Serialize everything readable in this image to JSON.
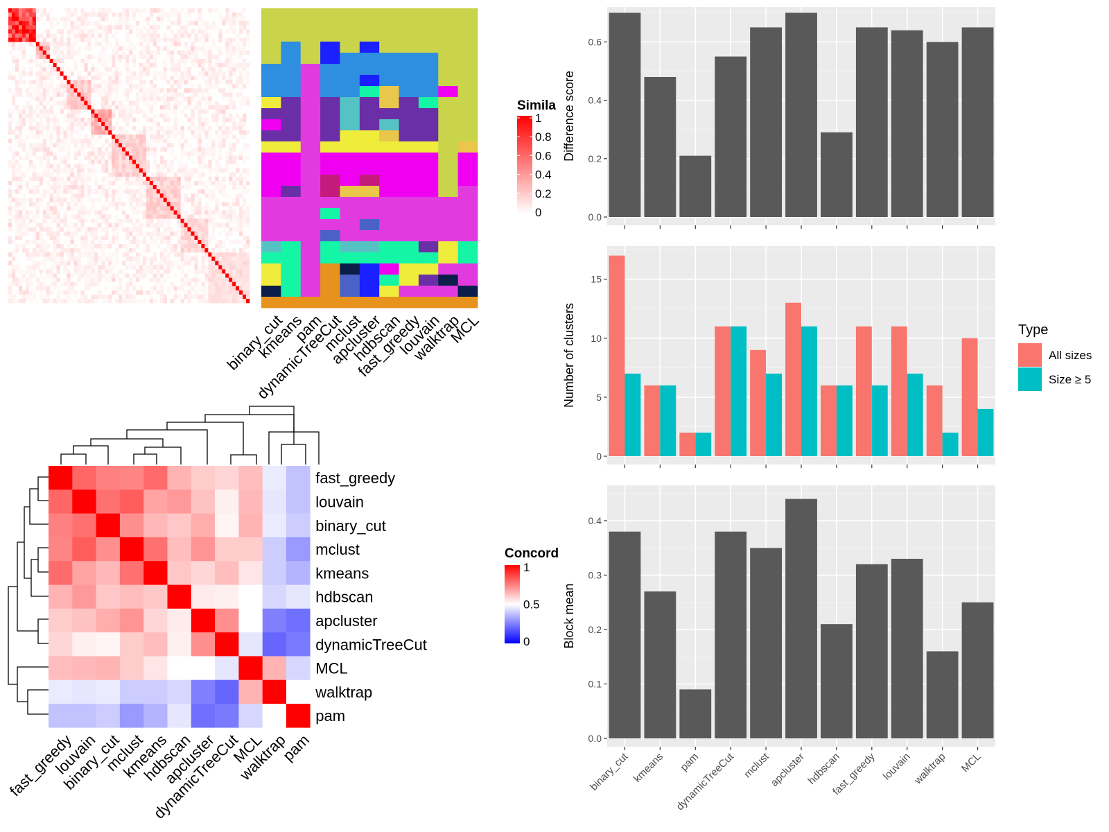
{
  "colors": {
    "panel_bg": "#ebebeb",
    "bar_dark": "#595959",
    "all_sizes": "#f8766d",
    "size_ge5": "#00bfc4",
    "heat_high": "#ff0000",
    "heat_mid": "#ffffff",
    "heat_low": "#0000ff"
  },
  "chart_data": [
    {
      "type": "heatmap",
      "name": "similarity-matrix",
      "legend": {
        "title": "Simila",
        "ticks": [
          "1",
          "0.8",
          "0.6",
          "0.4",
          "0.2",
          "0"
        ],
        "range": [
          0,
          1
        ]
      }
    },
    {
      "type": "table",
      "name": "cluster-membership-grid",
      "columns": [
        "binary_cut",
        "kmeans",
        "pam",
        "dynamicTreeCut",
        "mclust",
        "apcluster",
        "hdbscan",
        "fast_greedy",
        "louvain",
        "walktrap",
        "MCL"
      ],
      "palette": [
        "#c9d44a",
        "#2e8ee0",
        "#e13be0",
        "#6a2fa6",
        "#f0ec3c",
        "#14f5a6",
        "#55c3c3",
        "#ef00f0",
        "#c41a7b",
        "#1a20ff",
        "#e8c74a",
        "#e8921e",
        "#4a62c8",
        "#0b1e4a",
        "#4ac8c8"
      ],
      "cells": [
        [
          0,
          0,
          0,
          0,
          0,
          0,
          0,
          0,
          0,
          0,
          0
        ],
        [
          0,
          0,
          0,
          0,
          0,
          0,
          0,
          0,
          0,
          0,
          0
        ],
        [
          0,
          0,
          0,
          0,
          0,
          0,
          0,
          0,
          0,
          0,
          0
        ],
        [
          0,
          1,
          0,
          9,
          0,
          9,
          0,
          0,
          0,
          0,
          0
        ],
        [
          0,
          1,
          0,
          9,
          1,
          1,
          1,
          1,
          1,
          0,
          0
        ],
        [
          1,
          1,
          2,
          1,
          1,
          1,
          1,
          1,
          1,
          0,
          0
        ],
        [
          1,
          1,
          2,
          1,
          1,
          9,
          1,
          1,
          1,
          0,
          0
        ],
        [
          1,
          1,
          2,
          1,
          1,
          5,
          10,
          1,
          1,
          7,
          0
        ],
        [
          4,
          3,
          2,
          3,
          6,
          3,
          10,
          3,
          5,
          0,
          0
        ],
        [
          3,
          3,
          2,
          3,
          6,
          3,
          3,
          3,
          3,
          0,
          0
        ],
        [
          7,
          3,
          2,
          3,
          6,
          3,
          6,
          3,
          3,
          0,
          0
        ],
        [
          3,
          3,
          2,
          3,
          4,
          4,
          10,
          3,
          3,
          0,
          0
        ],
        [
          4,
          4,
          2,
          4,
          4,
          4,
          4,
          4,
          4,
          0,
          10
        ],
        [
          7,
          7,
          2,
          7,
          7,
          7,
          7,
          7,
          7,
          0,
          7
        ],
        [
          7,
          7,
          2,
          7,
          7,
          7,
          7,
          7,
          7,
          0,
          7
        ],
        [
          7,
          7,
          2,
          8,
          7,
          8,
          7,
          7,
          7,
          0,
          7
        ],
        [
          7,
          3,
          2,
          8,
          10,
          10,
          7,
          7,
          7,
          0,
          2
        ],
        [
          2,
          2,
          2,
          2,
          2,
          2,
          2,
          2,
          2,
          2,
          2
        ],
        [
          2,
          2,
          2,
          5,
          2,
          2,
          2,
          2,
          2,
          2,
          2
        ],
        [
          2,
          2,
          2,
          2,
          2,
          12,
          2,
          2,
          2,
          2,
          2
        ],
        [
          2,
          2,
          2,
          12,
          2,
          2,
          2,
          2,
          2,
          2,
          2
        ],
        [
          6,
          5,
          2,
          5,
          6,
          6,
          5,
          5,
          3,
          4,
          5
        ],
        [
          5,
          5,
          2,
          5,
          5,
          5,
          5,
          5,
          5,
          4,
          5
        ],
        [
          4,
          5,
          2,
          11,
          13,
          9,
          7,
          4,
          4,
          2,
          2
        ],
        [
          4,
          5,
          2,
          11,
          12,
          9,
          5,
          4,
          3,
          13,
          2
        ],
        [
          13,
          5,
          2,
          11,
          12,
          9,
          4,
          2,
          2,
          2,
          13
        ],
        [
          11,
          11,
          11,
          11,
          11,
          11,
          11,
          11,
          11,
          11,
          11
        ]
      ],
      "column_labels": [
        "binary_cut",
        "kmeans",
        "pam",
        "dynamicTreeCut",
        "mclust",
        "apcluster",
        "hdbscan",
        "fast_greedy",
        "louvain",
        "walktrap",
        "MCL"
      ]
    },
    {
      "type": "heatmap",
      "name": "concordance-heatmap",
      "labels": [
        "fast_greedy",
        "louvain",
        "binary_cut",
        "mclust",
        "kmeans",
        "hdbscan",
        "apcluster",
        "dynamicTreeCut",
        "MCL",
        "walktrap",
        "pam"
      ],
      "values": [
        [
          1.0,
          0.8,
          0.75,
          0.74,
          0.79,
          0.65,
          0.6,
          0.58,
          0.63,
          0.46,
          0.38
        ],
        [
          0.8,
          1.0,
          0.78,
          0.82,
          0.68,
          0.7,
          0.62,
          0.53,
          0.64,
          0.45,
          0.38
        ],
        [
          0.75,
          0.78,
          1.0,
          0.72,
          0.64,
          0.61,
          0.66,
          0.52,
          0.65,
          0.46,
          0.4
        ],
        [
          0.74,
          0.82,
          0.72,
          1.0,
          0.78,
          0.63,
          0.71,
          0.6,
          0.6,
          0.4,
          0.3
        ],
        [
          0.79,
          0.68,
          0.64,
          0.78,
          1.0,
          0.61,
          0.58,
          0.63,
          0.55,
          0.4,
          0.35
        ],
        [
          0.65,
          0.7,
          0.61,
          0.63,
          0.61,
          1.0,
          0.54,
          0.53,
          0.5,
          0.42,
          0.45
        ],
        [
          0.6,
          0.62,
          0.66,
          0.71,
          0.58,
          0.54,
          1.0,
          0.72,
          0.5,
          0.25,
          0.22
        ],
        [
          0.58,
          0.53,
          0.52,
          0.6,
          0.63,
          0.53,
          0.72,
          1.0,
          0.45,
          0.2,
          0.24
        ],
        [
          0.63,
          0.64,
          0.65,
          0.6,
          0.55,
          0.5,
          0.5,
          0.45,
          1.0,
          0.65,
          0.42
        ],
        [
          0.46,
          0.45,
          0.46,
          0.4,
          0.4,
          0.42,
          0.25,
          0.2,
          0.65,
          1.0,
          0.5
        ],
        [
          0.38,
          0.38,
          0.4,
          0.3,
          0.35,
          0.45,
          0.22,
          0.24,
          0.42,
          0.5,
          1.0
        ]
      ],
      "legend": {
        "title": "Concord",
        "ticks": [
          "1",
          "0.5",
          "0"
        ],
        "range": [
          0,
          1
        ]
      }
    },
    {
      "type": "bar",
      "name": "difference-score-chart",
      "categories": [
        "binary_cut",
        "kmeans",
        "pam",
        "dynamicTreeCut",
        "mclust",
        "apcluster",
        "hdbscan",
        "fast_greedy",
        "louvain",
        "walktrap",
        "MCL"
      ],
      "values": [
        0.7,
        0.48,
        0.21,
        0.55,
        0.65,
        0.7,
        0.29,
        0.65,
        0.64,
        0.6,
        0.65
      ],
      "ylabel": "Difference score",
      "ylim": [
        0,
        0.72
      ],
      "yticks": [
        0.0,
        0.2,
        0.4,
        0.6
      ],
      "ytick_labels": [
        "0.0",
        "0.2",
        "0.4",
        "0.6"
      ]
    },
    {
      "type": "bar",
      "name": "number-of-clusters-chart",
      "categories": [
        "binary_cut",
        "kmeans",
        "pam",
        "dynamicTreeCut",
        "mclust",
        "apcluster",
        "hdbscan",
        "fast_greedy",
        "louvain",
        "walktrap",
        "MCL"
      ],
      "series": [
        {
          "name": "All sizes",
          "values": [
            17,
            6,
            2,
            11,
            9,
            13,
            6,
            11,
            11,
            6,
            10
          ]
        },
        {
          "name": "Size ≥ 5",
          "values": [
            7,
            6,
            2,
            11,
            7,
            11,
            6,
            6,
            7,
            2,
            4
          ]
        }
      ],
      "ylabel": "Number of clusters",
      "ylim": [
        0,
        17.8
      ],
      "yticks": [
        0,
        5,
        10,
        15
      ],
      "ytick_labels": [
        "0",
        "5",
        "10",
        "15"
      ],
      "legend": {
        "title": "Type",
        "position": "right"
      }
    },
    {
      "type": "bar",
      "name": "block-mean-chart",
      "categories": [
        "binary_cut",
        "kmeans",
        "pam",
        "dynamicTreeCut",
        "mclust",
        "apcluster",
        "hdbscan",
        "fast_greedy",
        "louvain",
        "walktrap",
        "MCL"
      ],
      "values": [
        0.38,
        0.27,
        0.09,
        0.38,
        0.35,
        0.44,
        0.21,
        0.32,
        0.33,
        0.16,
        0.25
      ],
      "ylabel": "Block mean",
      "ylim": [
        0,
        0.465
      ],
      "yticks": [
        0.0,
        0.1,
        0.2,
        0.3,
        0.4
      ],
      "ytick_labels": [
        "0.0",
        "0.1",
        "0.2",
        "0.3",
        "0.4"
      ]
    }
  ]
}
